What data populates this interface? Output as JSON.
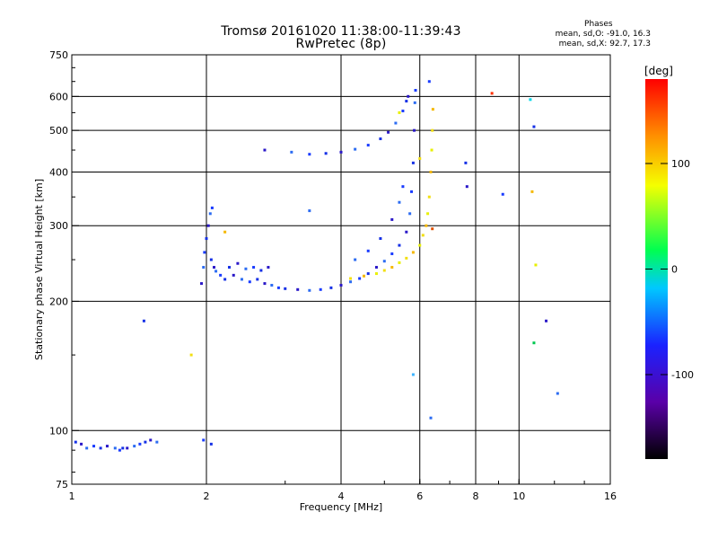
{
  "header": {
    "title_line1": "Tromsø 20161020 11:38:00-11:39:43",
    "title_line2": "RwPretec (8p)"
  },
  "stats": {
    "heading": "Phases",
    "line_o": "mean, sd,O: -91.0, 16.3",
    "line_x": "mean, sd,X:  92.7, 17.3"
  },
  "chart_data": {
    "type": "scatter",
    "xlabel": "Frequency [MHz]",
    "ylabel": "Stationary phase Virtual Height [km]",
    "xscale": "log",
    "yscale": "log",
    "xlim": [
      1,
      16
    ],
    "ylim": [
      75,
      750
    ],
    "x_ticks": [
      1,
      2,
      4,
      6,
      8,
      10,
      16
    ],
    "y_ticks": [
      75,
      100,
      200,
      300,
      400,
      500,
      600,
      750
    ],
    "grid": true,
    "colorbar": {
      "label": "[deg]",
      "range": [
        -180,
        180
      ],
      "ticks": [
        100,
        0,
        -100
      ],
      "colormap": "rainbow"
    },
    "colors": {
      "O": "#1530e6",
      "O_dark": "#2a18c8",
      "X": "#f2df12",
      "X_orange": "#f5b800"
    },
    "series": [
      {
        "mode": "O",
        "points": [
          [
            1.02,
            94
          ],
          [
            1.05,
            93
          ],
          [
            1.08,
            91
          ],
          [
            1.12,
            92
          ],
          [
            1.16,
            91
          ],
          [
            1.2,
            92
          ],
          [
            1.25,
            91
          ],
          [
            1.28,
            90
          ],
          [
            1.3,
            91
          ],
          [
            1.33,
            91
          ],
          [
            1.38,
            92
          ],
          [
            1.42,
            93
          ],
          [
            1.46,
            94
          ],
          [
            1.5,
            95
          ],
          [
            1.55,
            94
          ],
          [
            1.97,
            95
          ],
          [
            2.05,
            93
          ],
          [
            1.95,
            220
          ],
          [
            1.97,
            240
          ],
          [
            1.98,
            260
          ],
          [
            2.0,
            280
          ],
          [
            2.02,
            300
          ],
          [
            2.04,
            320
          ],
          [
            2.06,
            330
          ],
          [
            2.05,
            250
          ],
          [
            2.08,
            240
          ],
          [
            2.1,
            235
          ],
          [
            2.15,
            230
          ],
          [
            2.2,
            225
          ],
          [
            2.3,
            230
          ],
          [
            2.4,
            225
          ],
          [
            2.5,
            222
          ],
          [
            2.6,
            225
          ],
          [
            2.7,
            220
          ],
          [
            2.8,
            218
          ],
          [
            2.9,
            215
          ],
          [
            3.0,
            214
          ],
          [
            3.2,
            213
          ],
          [
            3.4,
            212
          ],
          [
            3.6,
            213
          ],
          [
            3.8,
            215
          ],
          [
            4.0,
            218
          ],
          [
            4.2,
            222
          ],
          [
            4.4,
            226
          ],
          [
            4.6,
            232
          ],
          [
            4.8,
            240
          ],
          [
            5.0,
            248
          ],
          [
            5.2,
            258
          ],
          [
            5.4,
            270
          ],
          [
            5.6,
            290
          ],
          [
            5.7,
            320
          ],
          [
            5.75,
            360
          ],
          [
            5.8,
            420
          ],
          [
            5.83,
            500
          ],
          [
            5.85,
            580
          ],
          [
            5.87,
            620
          ],
          [
            2.25,
            240
          ],
          [
            2.35,
            245
          ],
          [
            2.45,
            238
          ],
          [
            2.55,
            240
          ],
          [
            2.65,
            236
          ],
          [
            2.75,
            240
          ],
          [
            3.1,
            445
          ],
          [
            3.4,
            440
          ],
          [
            3.7,
            442
          ],
          [
            4.0,
            445
          ],
          [
            4.3,
            452
          ],
          [
            4.6,
            462
          ],
          [
            4.9,
            478
          ],
          [
            5.1,
            495
          ],
          [
            5.3,
            520
          ],
          [
            5.5,
            555
          ],
          [
            5.6,
            585
          ],
          [
            5.65,
            600
          ],
          [
            4.3,
            250
          ],
          [
            4.6,
            262
          ],
          [
            4.9,
            280
          ],
          [
            5.2,
            310
          ],
          [
            5.4,
            340
          ],
          [
            5.5,
            370
          ],
          [
            1.45,
            180
          ],
          [
            2.7,
            450
          ],
          [
            3.4,
            325
          ],
          [
            6.3,
            650
          ],
          [
            7.6,
            420
          ],
          [
            7.65,
            370
          ],
          [
            6.35,
            107
          ],
          [
            9.2,
            355
          ],
          [
            10.8,
            510
          ],
          [
            11.5,
            180
          ],
          [
            12.2,
            122
          ]
        ]
      },
      {
        "mode": "X",
        "points": [
          [
            4.2,
            226
          ],
          [
            4.5,
            229
          ],
          [
            4.8,
            232
          ],
          [
            5.0,
            236
          ],
          [
            5.2,
            240
          ],
          [
            5.4,
            246
          ],
          [
            5.6,
            252
          ],
          [
            5.8,
            260
          ],
          [
            6.0,
            270
          ],
          [
            6.1,
            285
          ],
          [
            6.2,
            300
          ],
          [
            6.25,
            320
          ],
          [
            6.3,
            350
          ],
          [
            6.35,
            400
          ],
          [
            6.38,
            450
          ],
          [
            6.4,
            500
          ],
          [
            6.42,
            560
          ],
          [
            5.4,
            550
          ],
          [
            6.0,
            430
          ],
          [
            10.7,
            360
          ],
          [
            10.9,
            243
          ],
          [
            1.85,
            150
          ],
          [
            2.2,
            290
          ]
        ]
      },
      {
        "mode": "other",
        "points": [
          [
            8.7,
            610
          ],
          [
            10.6,
            590
          ],
          [
            10.8,
            160
          ],
          [
            5.8,
            135
          ],
          [
            6.4,
            295
          ]
        ]
      }
    ]
  }
}
